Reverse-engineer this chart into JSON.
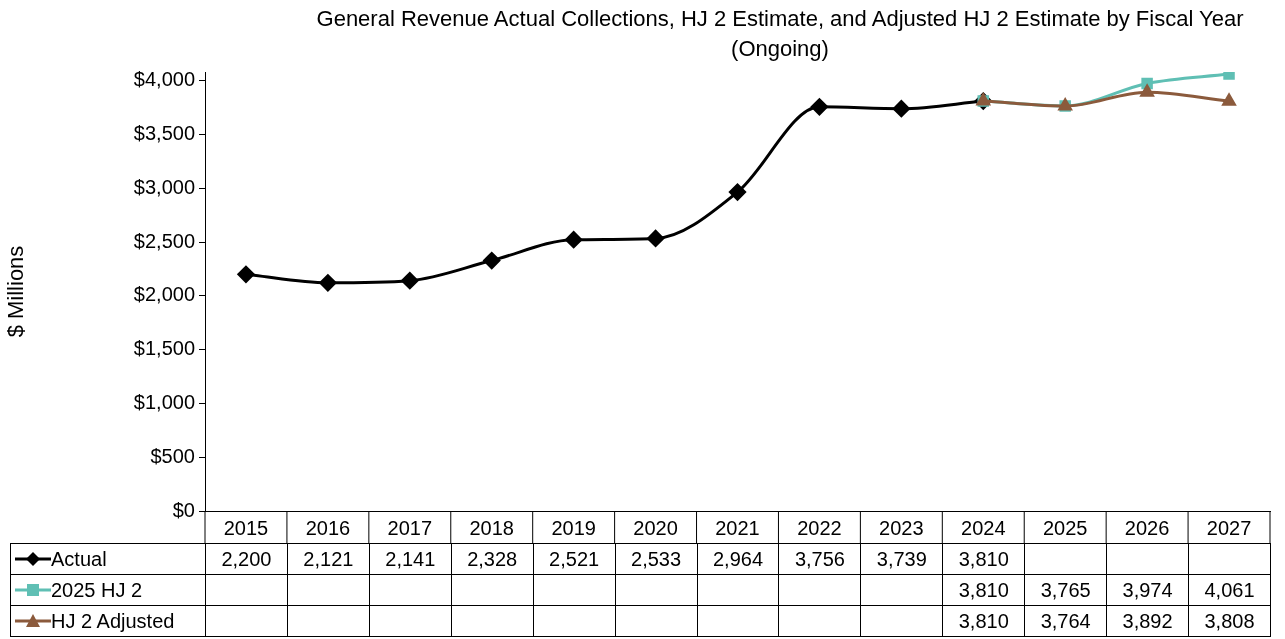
{
  "chart_data": {
    "type": "line",
    "title": "General Revenue Actual Collections, HJ 2 Estimate, and Adjusted HJ 2 Estimate by Fiscal Year (Ongoing)",
    "ylabel": "$ Millions",
    "categories": [
      "2015",
      "2016",
      "2017",
      "2018",
      "2019",
      "2020",
      "2021",
      "2022",
      "2023",
      "2024",
      "2025",
      "2026",
      "2027"
    ],
    "series": [
      {
        "name": "Actual",
        "color": "#000000",
        "marker": "diamond",
        "values": [
          2200,
          2121,
          2141,
          2328,
          2521,
          2533,
          2964,
          3756,
          3739,
          3810,
          null,
          null,
          null
        ],
        "value_labels": [
          "2,200",
          "2,121",
          "2,141",
          "2,328",
          "2,521",
          "2,533",
          "2,964",
          "3,756",
          "3,739",
          "3,810",
          null,
          null,
          null
        ]
      },
      {
        "name": "2025 HJ 2",
        "color": "#5fbfb4",
        "marker": "square",
        "values": [
          null,
          null,
          null,
          null,
          null,
          null,
          null,
          null,
          null,
          3810,
          3765,
          3974,
          4061
        ],
        "value_labels": [
          null,
          null,
          null,
          null,
          null,
          null,
          null,
          null,
          null,
          "3,810",
          "3,765",
          "3,974",
          "4,061"
        ]
      },
      {
        "name": "HJ 2 Adjusted",
        "color": "#8b5a3c",
        "marker": "triangle",
        "values": [
          null,
          null,
          null,
          null,
          null,
          null,
          null,
          null,
          null,
          3810,
          3764,
          3892,
          3808
        ],
        "value_labels": [
          null,
          null,
          null,
          null,
          null,
          null,
          null,
          null,
          null,
          "3,810",
          "3,764",
          "3,892",
          "3,808"
        ]
      }
    ],
    "ylim": [
      0,
      4080
    ],
    "yticks": [
      {
        "value": 0,
        "label": "$0"
      },
      {
        "value": 500,
        "label": "$500"
      },
      {
        "value": 1000,
        "label": "$1,000"
      },
      {
        "value": 1500,
        "label": "$1,500"
      },
      {
        "value": 2000,
        "label": "$2,000"
      },
      {
        "value": 2500,
        "label": "$2,500"
      },
      {
        "value": 3000,
        "label": "$3,000"
      },
      {
        "value": 3500,
        "label": "$3,500"
      },
      {
        "value": 4000,
        "label": "$4,000"
      }
    ],
    "grid": false,
    "legend": "bottom left",
    "line_style": "solid"
  }
}
